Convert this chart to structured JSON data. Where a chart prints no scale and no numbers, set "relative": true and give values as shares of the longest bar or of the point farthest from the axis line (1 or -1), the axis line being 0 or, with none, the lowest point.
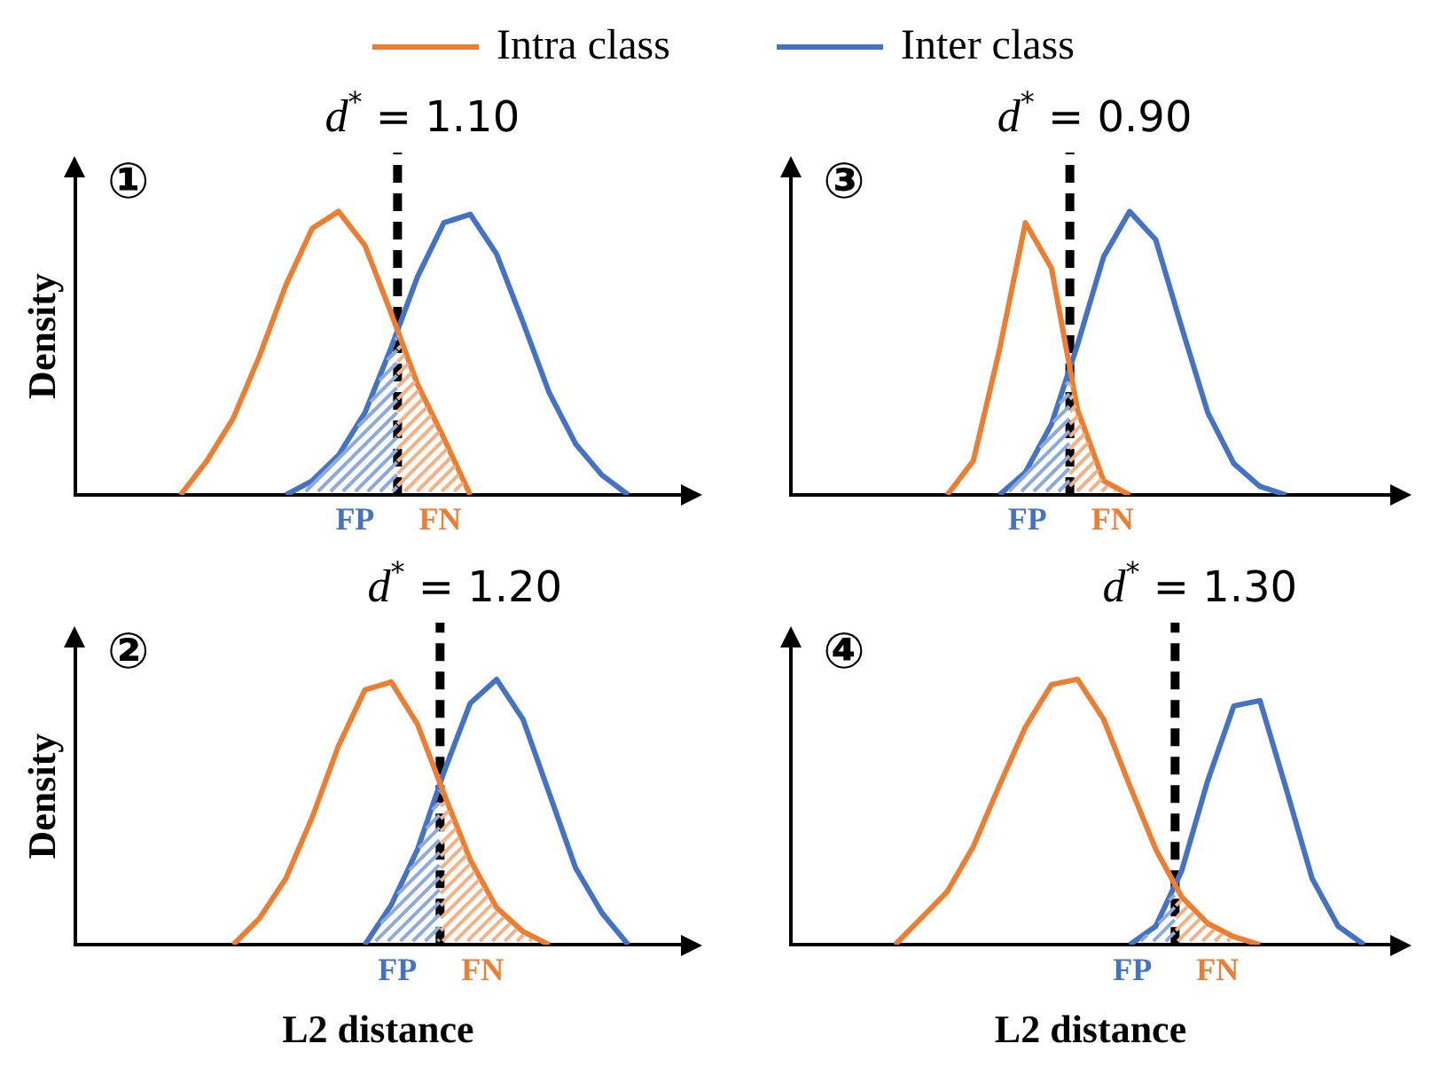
{
  "chart_data": [
    {
      "type": "line",
      "relative": true,
      "legend": "top",
      "tick_labels": false,
      "marker": "none",
      "ylabel": "Density",
      "annotations": [
        "①",
        "d$^{*}$ = 1.10",
        "FP",
        "FN"
      ],
      "categories": [
        null,
        null,
        null,
        null,
        null,
        null,
        null,
        null,
        null,
        null,
        null,
        null,
        null,
        null,
        null,
        null,
        null,
        null,
        null,
        null,
        null,
        null,
        null,
        null
      ],
      "series": [
        {
          "name": "Intra class",
          "color": "#ed7d31",
          "values": [
            null,
            null,
            null,
            null,
            0,
            0.12,
            0.27,
            0.49,
            0.74,
            0.94,
            1,
            0.88,
            0.64,
            0.39,
            0.2,
            0,
            null,
            null,
            null,
            null,
            null,
            null,
            null,
            null
          ]
        },
        {
          "name": "Inter class",
          "color": "#4472c4",
          "values": [
            null,
            null,
            null,
            null,
            null,
            null,
            null,
            null,
            0,
            0.05,
            0.14,
            0.29,
            0.52,
            0.77,
            0.96,
            0.99,
            0.85,
            0.61,
            0.36,
            0.18,
            0.07,
            0,
            null,
            null
          ]
        }
      ]
    },
    {
      "type": "line",
      "relative": true,
      "tick_labels": false,
      "marker": "none",
      "annotations": [
        "③",
        "d$^{*}$ = 0.90",
        "FP",
        "FN"
      ],
      "categories": [
        null,
        null,
        null,
        null,
        null,
        null,
        null,
        null,
        null,
        null,
        null,
        null,
        null,
        null,
        null,
        null,
        null,
        null,
        null,
        null,
        null,
        null,
        null,
        null
      ],
      "series": [
        {
          "color": "#ed7d31",
          "values": [
            null,
            null,
            null,
            null,
            null,
            null,
            0,
            0.12,
            0.51,
            0.96,
            0.8,
            0.3,
            0.05,
            0,
            null,
            null,
            null,
            null,
            null,
            null,
            null,
            null,
            null,
            null
          ]
        },
        {
          "color": "#4472c4",
          "values": [
            null,
            null,
            null,
            null,
            null,
            null,
            null,
            null,
            0,
            0.08,
            0.25,
            0.53,
            0.84,
            1,
            0.9,
            0.59,
            0.29,
            0.11,
            0.03,
            0,
            null,
            null,
            null,
            null
          ]
        }
      ]
    },
    {
      "type": "line",
      "relative": true,
      "tick_labels": false,
      "marker": "none",
      "ylabel": "Density",
      "xlabel": "L2 distance",
      "annotations": [
        "②",
        "d$^{*}$ = 1.20",
        "FP",
        "FN"
      ],
      "categories": [
        null,
        null,
        null,
        null,
        null,
        null,
        null,
        null,
        null,
        null,
        null,
        null,
        null,
        null,
        null,
        null,
        null,
        null,
        null,
        null,
        null,
        null,
        null,
        null
      ],
      "series": [
        {
          "color": "#ed7d31",
          "values": [
            null,
            null,
            null,
            null,
            null,
            null,
            0,
            0.1,
            0.25,
            0.48,
            0.75,
            0.96,
            0.99,
            0.83,
            0.57,
            0.32,
            0.14,
            0.05,
            0,
            null,
            null,
            null,
            null,
            null
          ]
        },
        {
          "color": "#4472c4",
          "values": [
            null,
            null,
            null,
            null,
            null,
            null,
            null,
            null,
            null,
            null,
            null,
            0,
            0.15,
            0.36,
            0.65,
            0.91,
            1,
            0.85,
            0.57,
            0.29,
            0.12,
            0,
            null,
            null
          ]
        }
      ]
    },
    {
      "type": "line",
      "relative": true,
      "tick_labels": false,
      "marker": "none",
      "xlabel": "L2 distance",
      "annotations": [
        "④",
        "d$^{*}$ = 1.30",
        "FP",
        "FN"
      ],
      "categories": [
        null,
        null,
        null,
        null,
        null,
        null,
        null,
        null,
        null,
        null,
        null,
        null,
        null,
        null,
        null,
        null,
        null,
        null,
        null,
        null,
        null,
        null,
        null,
        null
      ],
      "series": [
        {
          "color": "#ed7d31",
          "values": [
            null,
            null,
            null,
            null,
            0,
            0.1,
            0.2,
            0.37,
            0.6,
            0.82,
            0.98,
            1,
            0.85,
            0.6,
            0.36,
            0.18,
            0.08,
            0.03,
            0,
            null,
            null,
            null,
            null,
            null
          ]
        },
        {
          "color": "#4472c4",
          "values": [
            null,
            null,
            null,
            null,
            null,
            null,
            null,
            null,
            null,
            null,
            null,
            null,
            null,
            0,
            0.07,
            0.28,
            0.62,
            0.9,
            0.92,
            0.59,
            0.25,
            0.07,
            0,
            null
          ]
        }
      ]
    }
  ]
}
